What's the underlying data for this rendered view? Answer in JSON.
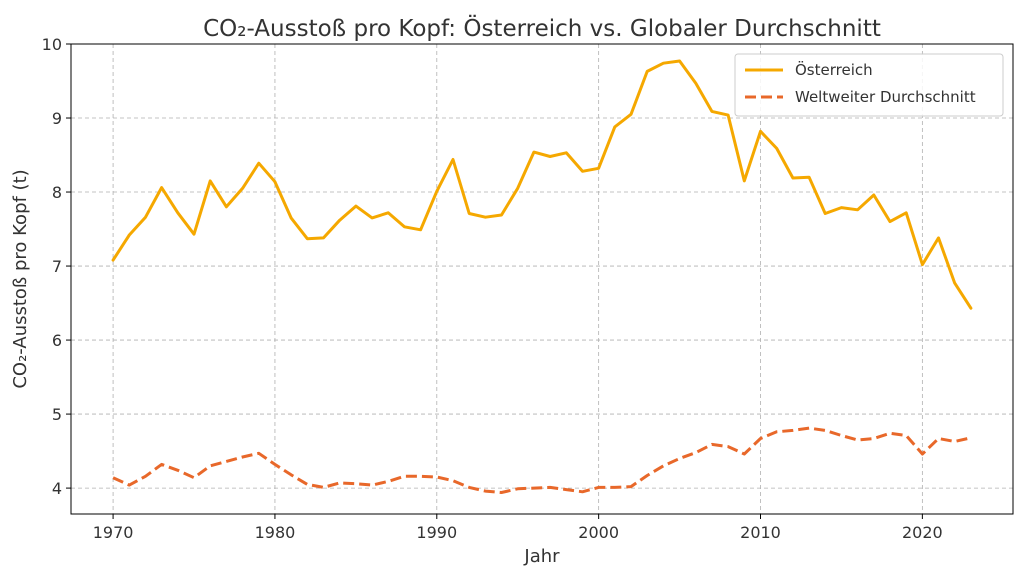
{
  "chart_data": {
    "type": "line",
    "title": "CO₂-Ausstoß pro Kopf: Österreich vs. Globaler Durchschnitt",
    "xlabel": "Jahr",
    "ylabel": "CO₂-Ausstoß pro Kopf (t)",
    "xlim": [
      1967.4,
      2025.6
    ],
    "ylim": [
      3.65,
      10.0
    ],
    "xticks": [
      1970,
      1980,
      1990,
      2000,
      2010,
      2020
    ],
    "yticks": [
      4,
      5,
      6,
      7,
      8,
      9,
      10
    ],
    "grid": true,
    "legend_position": "top-right",
    "x": [
      1970,
      1971,
      1972,
      1973,
      1974,
      1975,
      1976,
      1977,
      1978,
      1979,
      1980,
      1981,
      1982,
      1983,
      1984,
      1985,
      1986,
      1987,
      1988,
      1989,
      1990,
      1991,
      1992,
      1993,
      1994,
      1995,
      1996,
      1997,
      1998,
      1999,
      2000,
      2001,
      2002,
      2003,
      2004,
      2005,
      2006,
      2007,
      2008,
      2009,
      2010,
      2011,
      2012,
      2013,
      2014,
      2015,
      2016,
      2017,
      2018,
      2019,
      2020,
      2021,
      2022,
      2023
    ],
    "series": [
      {
        "name": "Österreich",
        "color": "#f5a800",
        "dash": "solid",
        "values": [
          7.08,
          7.42,
          7.66,
          8.06,
          7.72,
          7.43,
          8.15,
          7.8,
          8.05,
          8.39,
          8.14,
          7.65,
          7.37,
          7.38,
          7.62,
          7.81,
          7.65,
          7.72,
          7.53,
          7.49,
          8.01,
          8.44,
          7.71,
          7.66,
          7.69,
          8.05,
          8.54,
          8.48,
          8.53,
          8.28,
          8.32,
          8.88,
          9.05,
          9.63,
          9.74,
          9.77,
          9.47,
          9.09,
          9.04,
          8.15,
          8.82,
          8.59,
          8.19,
          8.2,
          7.71,
          7.79,
          7.76,
          7.96,
          7.6,
          7.72,
          7.02,
          7.38,
          6.77,
          6.43
        ]
      },
      {
        "name": "Weltweiter Durchschnitt",
        "color": "#e8682a",
        "dash": "dashed",
        "values": [
          4.14,
          4.04,
          4.16,
          4.32,
          4.24,
          4.14,
          4.3,
          4.36,
          4.42,
          4.47,
          4.32,
          4.18,
          4.05,
          4.01,
          4.07,
          4.06,
          4.04,
          4.09,
          4.16,
          4.16,
          4.15,
          4.1,
          4.01,
          3.96,
          3.94,
          3.99,
          4.0,
          4.01,
          3.98,
          3.95,
          4.01,
          4.01,
          4.02,
          4.17,
          4.3,
          4.4,
          4.48,
          4.59,
          4.56,
          4.46,
          4.67,
          4.76,
          4.78,
          4.81,
          4.78,
          4.71,
          4.65,
          4.67,
          4.74,
          4.71,
          4.46,
          4.67,
          4.63,
          4.68
        ]
      }
    ]
  }
}
